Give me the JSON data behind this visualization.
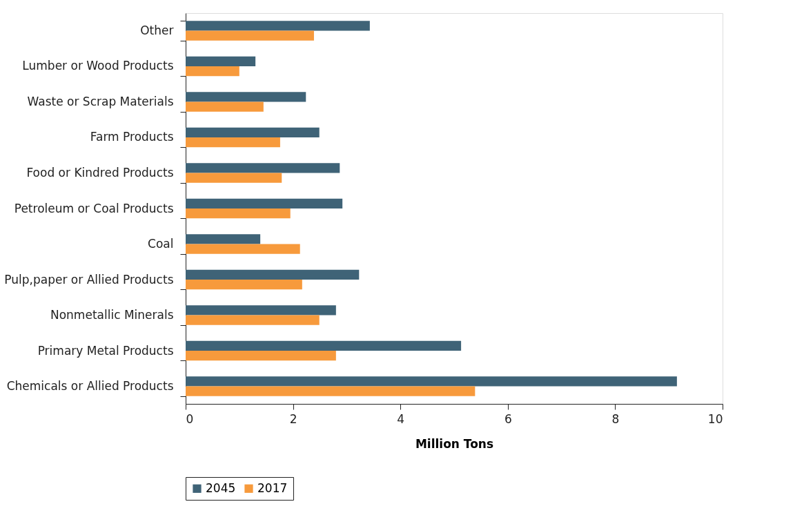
{
  "chart_data": {
    "type": "bar",
    "orientation": "horizontal",
    "xlabel": "Million Tons",
    "categories": [
      "Other",
      "Lumber or Wood Products",
      "Waste or Scrap Materials",
      "Farm Products",
      "Food or Kindred Products",
      "Petroleum or Coal Products",
      "Coal",
      "Pulp,paper or Allied Products",
      "Nonmetallic Minerals",
      "Primary Metal Products",
      "Chemicals or Allied Products"
    ],
    "series": [
      {
        "name": "2045",
        "color": "#3f6377",
        "values": [
          3.43,
          1.3,
          2.24,
          2.49,
          2.87,
          2.92,
          1.39,
          3.23,
          2.8,
          5.13,
          9.15
        ]
      },
      {
        "name": "2017",
        "color": "#f79a3c",
        "values": [
          2.39,
          1.0,
          1.45,
          1.76,
          1.79,
          1.95,
          2.13,
          2.17,
          2.49,
          2.8,
          5.39
        ]
      }
    ],
    "xlim": [
      0,
      10
    ],
    "xticks": [
      0,
      2,
      4,
      6,
      8,
      10
    ],
    "grid": false,
    "legend": "bottom"
  }
}
